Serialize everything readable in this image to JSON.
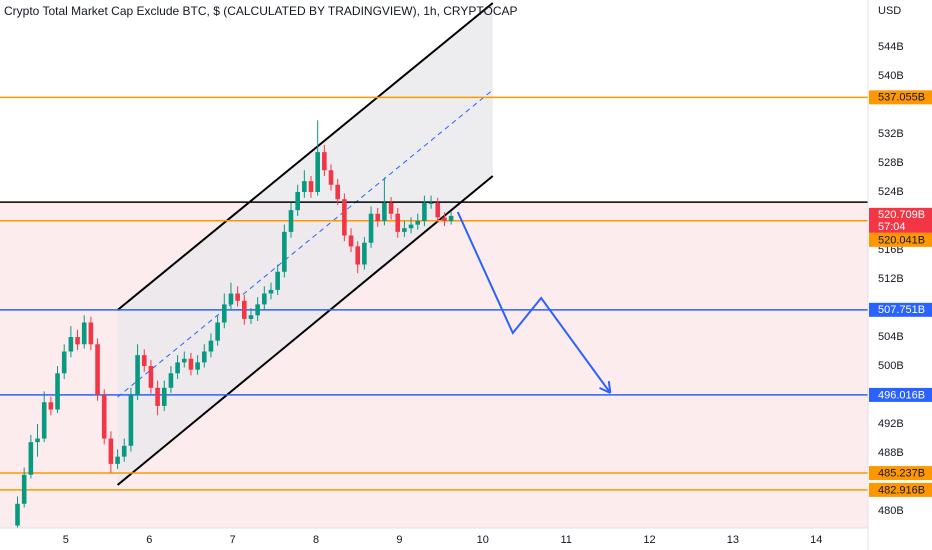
{
  "chart_data": {
    "type": "candlestick",
    "title": "Crypto Total Market Cap Exclude BTC, $ (CALCULATED BY TRADINGVIEW), 1h, CRYPTOCAP",
    "y_unit": "USD",
    "x": [
      4.42,
      4.5,
      4.58,
      4.66,
      4.74,
      4.82,
      4.9,
      4.98,
      5.06,
      5.14,
      5.22,
      5.3,
      5.38,
      5.46,
      5.54,
      5.62,
      5.7,
      5.78,
      5.86,
      5.94,
      6.02,
      6.1,
      6.18,
      6.26,
      6.34,
      6.42,
      6.5,
      6.58,
      6.66,
      6.74,
      6.82,
      6.9,
      6.98,
      7.06,
      7.14,
      7.22,
      7.3,
      7.38,
      7.46,
      7.54,
      7.62,
      7.7,
      7.78,
      7.86,
      7.94,
      8.02,
      8.1,
      8.18,
      8.26,
      8.34,
      8.42,
      8.5,
      8.58,
      8.66,
      8.74,
      8.82,
      8.9,
      8.98,
      9.06,
      9.14,
      9.22,
      9.3,
      9.38,
      9.46,
      9.54,
      9.62
    ],
    "open": [
      478,
      481,
      485,
      489.5,
      490,
      495,
      494,
      499,
      502,
      504,
      503,
      506,
      503,
      496,
      490,
      486.5,
      487.5,
      489,
      496,
      501.5,
      500,
      497,
      494.5,
      497,
      499,
      500.5,
      501,
      499.5,
      500.5,
      502,
      503.5,
      506,
      508.5,
      510,
      509,
      506.5,
      507,
      508.5,
      510,
      510.5,
      513,
      518.5,
      521.5,
      524,
      525.5,
      524,
      529.5,
      527,
      525,
      523,
      518,
      516.5,
      514,
      517,
      521,
      520,
      522.5,
      521,
      518.5,
      519,
      519.5,
      520,
      522.5,
      522.5,
      520.5,
      520
    ],
    "high": [
      482,
      486,
      490.5,
      492,
      496.5,
      495.8,
      500,
      503,
      505.5,
      505,
      507,
      506.8,
      503.8,
      496.8,
      491,
      488.5,
      490,
      497,
      503,
      502.3,
      500.8,
      498,
      498,
      500,
      501.5,
      502,
      501.8,
      501.5,
      503,
      504.5,
      507,
      510,
      511.5,
      511,
      509.8,
      508,
      509.5,
      511,
      511.5,
      514,
      519.5,
      522.5,
      525,
      527,
      526.2,
      533.9,
      530.5,
      527.8,
      525.8,
      523.8,
      519,
      517.2,
      517.8,
      522,
      521.8,
      526,
      523.3,
      521.8,
      520,
      520.5,
      521,
      523.5,
      523.5,
      523.2,
      521.2,
      521.3
    ],
    "low": [
      477,
      480.5,
      484.5,
      487.5,
      489.5,
      493.2,
      493.5,
      498.2,
      501.2,
      502.2,
      502.4,
      502.2,
      495.2,
      489.2,
      485.3,
      485.8,
      486.8,
      488.2,
      495.3,
      499.2,
      496.2,
      493.2,
      493.8,
      496.3,
      498.2,
      499.8,
      498.7,
      498.8,
      499.8,
      501.2,
      502.8,
      505.2,
      507.7,
      508.2,
      505.7,
      505.8,
      506.2,
      507.8,
      509.2,
      509.8,
      512.2,
      517.7,
      520.7,
      523.2,
      523.2,
      523.5,
      526.2,
      524.2,
      522.2,
      517.2,
      515.7,
      512.8,
      513.3,
      516.3,
      519.2,
      519.4,
      520.2,
      517.7,
      517.8,
      518.3,
      518.8,
      519.3,
      521.7,
      519.8,
      519.3,
      519.5
    ],
    "close": [
      481,
      485,
      489.5,
      490,
      495,
      494,
      499,
      502,
      504,
      503,
      506,
      503,
      496,
      490,
      486.5,
      487.5,
      489,
      496,
      501.5,
      500,
      497,
      494.5,
      497,
      499,
      500.5,
      501,
      499.5,
      500.5,
      502,
      503.5,
      506,
      508.5,
      510,
      509,
      506.5,
      507,
      508.5,
      510,
      510.5,
      513,
      518.5,
      521.5,
      524,
      525.5,
      524,
      529.5,
      527,
      525,
      523,
      518,
      516.5,
      514,
      517,
      521,
      520,
      522.5,
      521,
      518.5,
      519,
      519.5,
      520,
      522.5,
      522.5,
      520.5,
      520,
      520.709
    ],
    "up_color": "#089981",
    "down_color": "#f23645",
    "xlim": [
      4.21,
      14.62
    ],
    "xticks": [
      5,
      6,
      7,
      8,
      9,
      10,
      11,
      12,
      13,
      14
    ],
    "ylim": [
      477.66,
      550.48
    ],
    "yticks": [
      {
        "value": 480,
        "label": "480B"
      },
      {
        "value": 488,
        "label": "488B"
      },
      {
        "value": 492,
        "label": "492B"
      },
      {
        "value": 500,
        "label": "500B"
      },
      {
        "value": 504,
        "label": "504B"
      },
      {
        "value": 512,
        "label": "512B"
      },
      {
        "value": 516,
        "label": "516B"
      },
      {
        "value": 524,
        "label": "524B"
      },
      {
        "value": 528,
        "label": "528B"
      },
      {
        "value": 532,
        "label": "532B"
      },
      {
        "value": 540,
        "label": "540B"
      },
      {
        "value": 544,
        "label": "544B"
      }
    ],
    "zone_color": "#fdecee",
    "horizontal_lines": [
      {
        "value": 522.6,
        "color": "#000000"
      },
      {
        "value": 537.055,
        "label": "537.055B",
        "color": "#ff9800"
      },
      {
        "value": 520.041,
        "label": "520.041B",
        "color": "#ff9800"
      },
      {
        "value": 507.751,
        "label": "507.751B",
        "color": "#2962ff"
      },
      {
        "value": 496.016,
        "label": "496.016B",
        "color": "#2962ff"
      },
      {
        "value": 485.237,
        "label": "485.237B",
        "color": "#ff9800"
      },
      {
        "value": 482.916,
        "label": "482.916B",
        "color": "#ff9800"
      }
    ],
    "last_price": {
      "value": 520.709,
      "label": "520.709B",
      "countdown": "57:04",
      "color": "#f23645"
    },
    "channel": {
      "x": [
        5.62,
        10.12
      ],
      "upper": [
        507.72,
        550.07
      ],
      "lower": [
        483.59,
        526.21
      ],
      "middle": [
        495.72,
        538.07
      ],
      "color": "#000000",
      "middle_color": "#2962ff",
      "fill": "#e9e9ec"
    },
    "projection": {
      "x": [
        9.7,
        10.36,
        10.7,
        11.53
      ],
      "values": [
        521.24,
        504.55,
        509.38,
        496.28
      ],
      "color": "#2962ff"
    }
  }
}
